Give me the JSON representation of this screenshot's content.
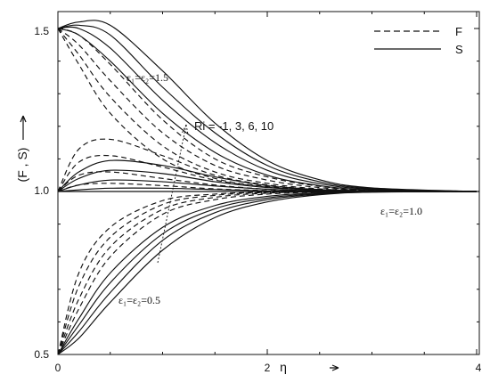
{
  "chart_data": {
    "type": "line",
    "title": "",
    "xlabel": "η",
    "ylabel": "(F , S)",
    "xlim": [
      0,
      4
    ],
    "ylim": [
      0.5,
      1.55
    ],
    "x_ticks": [
      {
        "value": 0,
        "label": "0"
      },
      {
        "value": 2,
        "label": "2"
      },
      {
        "value": 4,
        "label": "4"
      }
    ],
    "y_ticks": [
      {
        "value": 0.5,
        "label": "0.5"
      },
      {
        "value": 1.0,
        "label": "1.0"
      },
      {
        "value": 1.5,
        "label": "1.5"
      }
    ],
    "grid": false,
    "legend": {
      "placement": "top-right",
      "entries": [
        {
          "label": "F",
          "style": "dashed"
        },
        {
          "label": "S",
          "style": "solid"
        }
      ]
    },
    "annotations": {
      "group_high": "ε₁=ε₂=1.5",
      "group_mid": "ε₁=ε₂=1.0",
      "group_low": "ε₁=ε₂=0.5",
      "ri": "Ri = -1, 3, 6, 10"
    },
    "ri_values": [
      -1,
      3,
      6,
      10
    ],
    "series": [
      {
        "group": "1.5",
        "curve": "F",
        "x": [
          0,
          0.2,
          0.5,
          1.0,
          1.5,
          2.0,
          2.5,
          3.0,
          4.0
        ],
        "y": [
          [
            1.5,
            1.39,
            1.24,
            1.1,
            1.04,
            1.015,
            1.005,
            1.0,
            1.0
          ],
          [
            1.5,
            1.42,
            1.29,
            1.14,
            1.06,
            1.025,
            1.008,
            1.002,
            1.0
          ],
          [
            1.5,
            1.45,
            1.34,
            1.18,
            1.08,
            1.035,
            1.012,
            1.003,
            1.0
          ],
          [
            1.5,
            1.48,
            1.39,
            1.22,
            1.1,
            1.045,
            1.016,
            1.004,
            1.0
          ]
        ]
      },
      {
        "group": "1.5",
        "curve": "S",
        "x": [
          0,
          0.2,
          0.5,
          1.0,
          1.5,
          2.0,
          2.5,
          3.0,
          4.0
        ],
        "y": [
          [
            1.5,
            1.48,
            1.4,
            1.24,
            1.12,
            1.05,
            1.018,
            1.005,
            1.0
          ],
          [
            1.5,
            1.5,
            1.44,
            1.28,
            1.15,
            1.065,
            1.024,
            1.007,
            1.0
          ],
          [
            1.5,
            1.51,
            1.48,
            1.32,
            1.18,
            1.08,
            1.03,
            1.009,
            1.0
          ],
          [
            1.5,
            1.52,
            1.51,
            1.37,
            1.21,
            1.095,
            1.036,
            1.011,
            1.0
          ]
        ]
      },
      {
        "group": "1.0",
        "curve": "F",
        "x": [
          0,
          0.2,
          0.5,
          1.0,
          1.5,
          2.0,
          2.5,
          3.0,
          4.0
        ],
        "y": [
          [
            1.0,
            1.02,
            1.025,
            1.018,
            1.008,
            1.003,
            1.001,
            1.0,
            1.0
          ],
          [
            1.0,
            1.05,
            1.06,
            1.04,
            1.02,
            1.007,
            1.002,
            1.0,
            1.0
          ],
          [
            1.0,
            1.09,
            1.11,
            1.075,
            1.035,
            1.013,
            1.004,
            1.001,
            1.0
          ],
          [
            1.0,
            1.13,
            1.16,
            1.11,
            1.05,
            1.02,
            1.006,
            1.002,
            1.0
          ]
        ]
      },
      {
        "group": "1.0",
        "curve": "S",
        "x": [
          0,
          0.2,
          0.5,
          1.0,
          1.5,
          2.0,
          2.5,
          3.0,
          4.0
        ],
        "y": [
          [
            1.0,
            1.005,
            1.01,
            1.01,
            1.006,
            1.002,
            1.001,
            1.0,
            1.0
          ],
          [
            1.0,
            1.02,
            1.035,
            1.03,
            1.017,
            1.007,
            1.002,
            1.0,
            1.0
          ],
          [
            1.0,
            1.04,
            1.065,
            1.055,
            1.03,
            1.012,
            1.004,
            1.001,
            1.0
          ],
          [
            1.0,
            1.06,
            1.095,
            1.08,
            1.045,
            1.018,
            1.006,
            1.002,
            1.0
          ]
        ]
      },
      {
        "group": "0.5",
        "curve": "F",
        "x": [
          0,
          0.2,
          0.5,
          1.0,
          1.5,
          2.0,
          2.5,
          3.0,
          4.0
        ],
        "y": [
          [
            0.5,
            0.64,
            0.8,
            0.93,
            0.975,
            0.992,
            0.998,
            1.0,
            1.0
          ],
          [
            0.5,
            0.67,
            0.83,
            0.945,
            0.982,
            0.995,
            0.999,
            1.0,
            1.0
          ],
          [
            0.5,
            0.71,
            0.86,
            0.96,
            0.988,
            0.997,
            0.999,
            1.0,
            1.0
          ],
          [
            0.5,
            0.75,
            0.89,
            0.972,
            0.992,
            0.998,
            1.0,
            1.0,
            1.0
          ]
        ]
      },
      {
        "group": "0.5",
        "curve": "S",
        "x": [
          0,
          0.2,
          0.5,
          1.0,
          1.5,
          2.0,
          2.5,
          3.0,
          4.0
        ],
        "y": [
          [
            0.5,
            0.55,
            0.66,
            0.82,
            0.92,
            0.968,
            0.99,
            0.998,
            1.0
          ],
          [
            0.5,
            0.57,
            0.69,
            0.85,
            0.935,
            0.975,
            0.992,
            0.998,
            1.0
          ],
          [
            0.5,
            0.59,
            0.72,
            0.87,
            0.947,
            0.98,
            0.994,
            0.999,
            1.0
          ],
          [
            0.5,
            0.61,
            0.75,
            0.89,
            0.957,
            0.985,
            0.996,
            0.999,
            1.0
          ]
        ]
      }
    ]
  }
}
